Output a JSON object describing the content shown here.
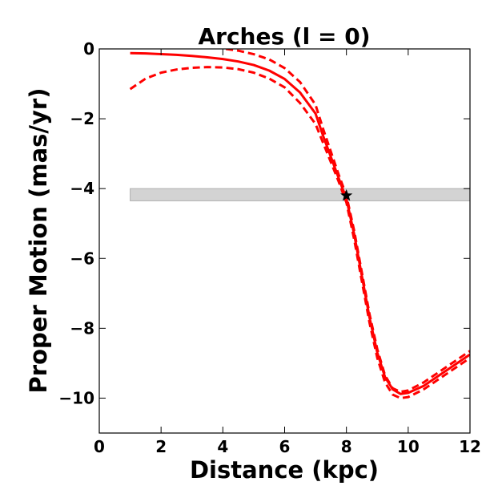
{
  "chart_data": {
    "type": "line",
    "title": "Arches (l = 0)",
    "xlabel": "Distance (kpc)",
    "ylabel": "Proper Motion (mas/yr)",
    "xlim": [
      0,
      12
    ],
    "ylim": [
      -11,
      0
    ],
    "xticks": [
      "0",
      "2",
      "4",
      "6",
      "8",
      "10",
      "12"
    ],
    "yticks": [
      "0",
      "−2",
      "−4",
      "−6",
      "−8",
      "−10"
    ],
    "grid": false,
    "legend": "none",
    "colors": {
      "line": "#ff0000",
      "band": "#d3d3d3",
      "band_edge": "#b0b0b0",
      "marker": "#000000",
      "axes": "#000000"
    },
    "band": {
      "x_range": [
        1,
        12
      ],
      "y_range": [
        -4.35,
        -4.0
      ]
    },
    "marker": {
      "shape": "star",
      "x": 8.0,
      "y": -4.2
    },
    "series": [
      {
        "style": "solid",
        "x": [
          1.0,
          1.5,
          2.0,
          2.5,
          3.0,
          3.5,
          4.0,
          4.5,
          5.0,
          5.5,
          6.0,
          6.5,
          7.0,
          7.25,
          7.5,
          7.75,
          8.0,
          8.25,
          8.5,
          8.75,
          9.0,
          9.25,
          9.5,
          9.75,
          10.0,
          10.5,
          11.0,
          11.5,
          12.0
        ],
        "y": [
          -0.12,
          -0.13,
          -0.15,
          -0.17,
          -0.2,
          -0.24,
          -0.29,
          -0.36,
          -0.46,
          -0.62,
          -0.86,
          -1.25,
          -1.85,
          -2.5,
          -3.1,
          -3.7,
          -4.3,
          -5.3,
          -6.5,
          -7.7,
          -8.7,
          -9.4,
          -9.75,
          -9.88,
          -9.85,
          -9.65,
          -9.35,
          -9.05,
          -8.75
        ]
      },
      {
        "style": "dashed",
        "x": [
          4.1,
          4.5,
          5.0,
          5.5,
          6.0,
          6.5,
          7.0,
          7.25,
          7.5,
          7.75,
          8.0,
          8.25,
          8.5,
          8.75,
          9.0,
          9.25,
          9.5,
          9.75,
          10.0,
          10.5,
          11.0,
          11.5,
          12.0
        ],
        "y": [
          0.0,
          -0.05,
          -0.15,
          -0.3,
          -0.55,
          -0.95,
          -1.6,
          -2.3,
          -2.95,
          -3.6,
          -4.2,
          -5.2,
          -6.4,
          -7.6,
          -8.6,
          -9.35,
          -9.72,
          -9.82,
          -9.78,
          -9.55,
          -9.25,
          -8.95,
          -8.65
        ]
      },
      {
        "style": "dashed",
        "x": [
          1.0,
          1.5,
          2.0,
          2.5,
          3.0,
          3.5,
          4.0,
          4.5,
          5.0,
          5.5,
          6.0,
          6.5,
          7.0,
          7.25,
          7.5,
          7.75,
          8.0,
          8.25,
          8.5,
          8.75,
          9.0,
          9.25,
          9.5,
          9.75,
          10.0,
          10.5,
          11.0,
          11.5,
          12.0
        ],
        "y": [
          -1.15,
          -0.85,
          -0.68,
          -0.59,
          -0.54,
          -0.52,
          -0.53,
          -0.58,
          -0.68,
          -0.85,
          -1.1,
          -1.55,
          -2.15,
          -2.7,
          -3.25,
          -3.8,
          -4.4,
          -5.45,
          -6.65,
          -7.85,
          -8.85,
          -9.55,
          -9.9,
          -10.0,
          -9.97,
          -9.75,
          -9.45,
          -9.15,
          -8.85
        ]
      }
    ]
  }
}
